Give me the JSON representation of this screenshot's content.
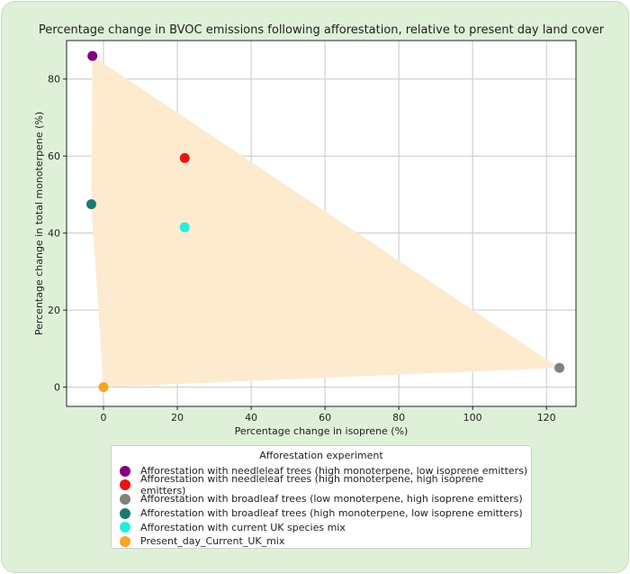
{
  "chart_data": {
    "type": "scatter",
    "title": "Percentage change in BVOC emissions following afforestation, relative to present day land cover",
    "xlabel": "Percentage change in isoprene (%)",
    "ylabel": "Percentage change in total monoterpene (%)",
    "xlim": [
      -10,
      128
    ],
    "ylim": [
      -5,
      90
    ],
    "x_ticks": [
      0,
      20,
      40,
      60,
      80,
      100,
      120
    ],
    "y_ticks": [
      0,
      20,
      40,
      60,
      80
    ],
    "grid": true,
    "hull_fill": "#fdebd0",
    "legend": {
      "title": "Afforestation experiment",
      "placement": "bottom-outside"
    },
    "series": [
      {
        "name": "Afforestation with needleleaf trees (high monoterpene, low isoprene emitters)",
        "color": "#800080",
        "x": -3,
        "y": 86
      },
      {
        "name": "Afforestation with needleleaf trees (high monoterpene, high isoprene emitters)",
        "color": "#ee1111",
        "x": 22,
        "y": 59.5
      },
      {
        "name": "Afforestation with broadleaf trees (low monoterpene, high isoprene emitters)",
        "color": "#808080",
        "x": 123.5,
        "y": 5
      },
      {
        "name": "Afforestation with broadleaf trees (high monoterpene, low isoprene emitters)",
        "color": "#1a7a73",
        "x": -3.3,
        "y": 47.5
      },
      {
        "name": "Afforestation with current UK species mix",
        "color": "#22eedd",
        "x": 22,
        "y": 41.5
      },
      {
        "name": "Present_day_Current_UK_mix",
        "color": "#f5a623",
        "x": 0,
        "y": 0
      }
    ]
  }
}
